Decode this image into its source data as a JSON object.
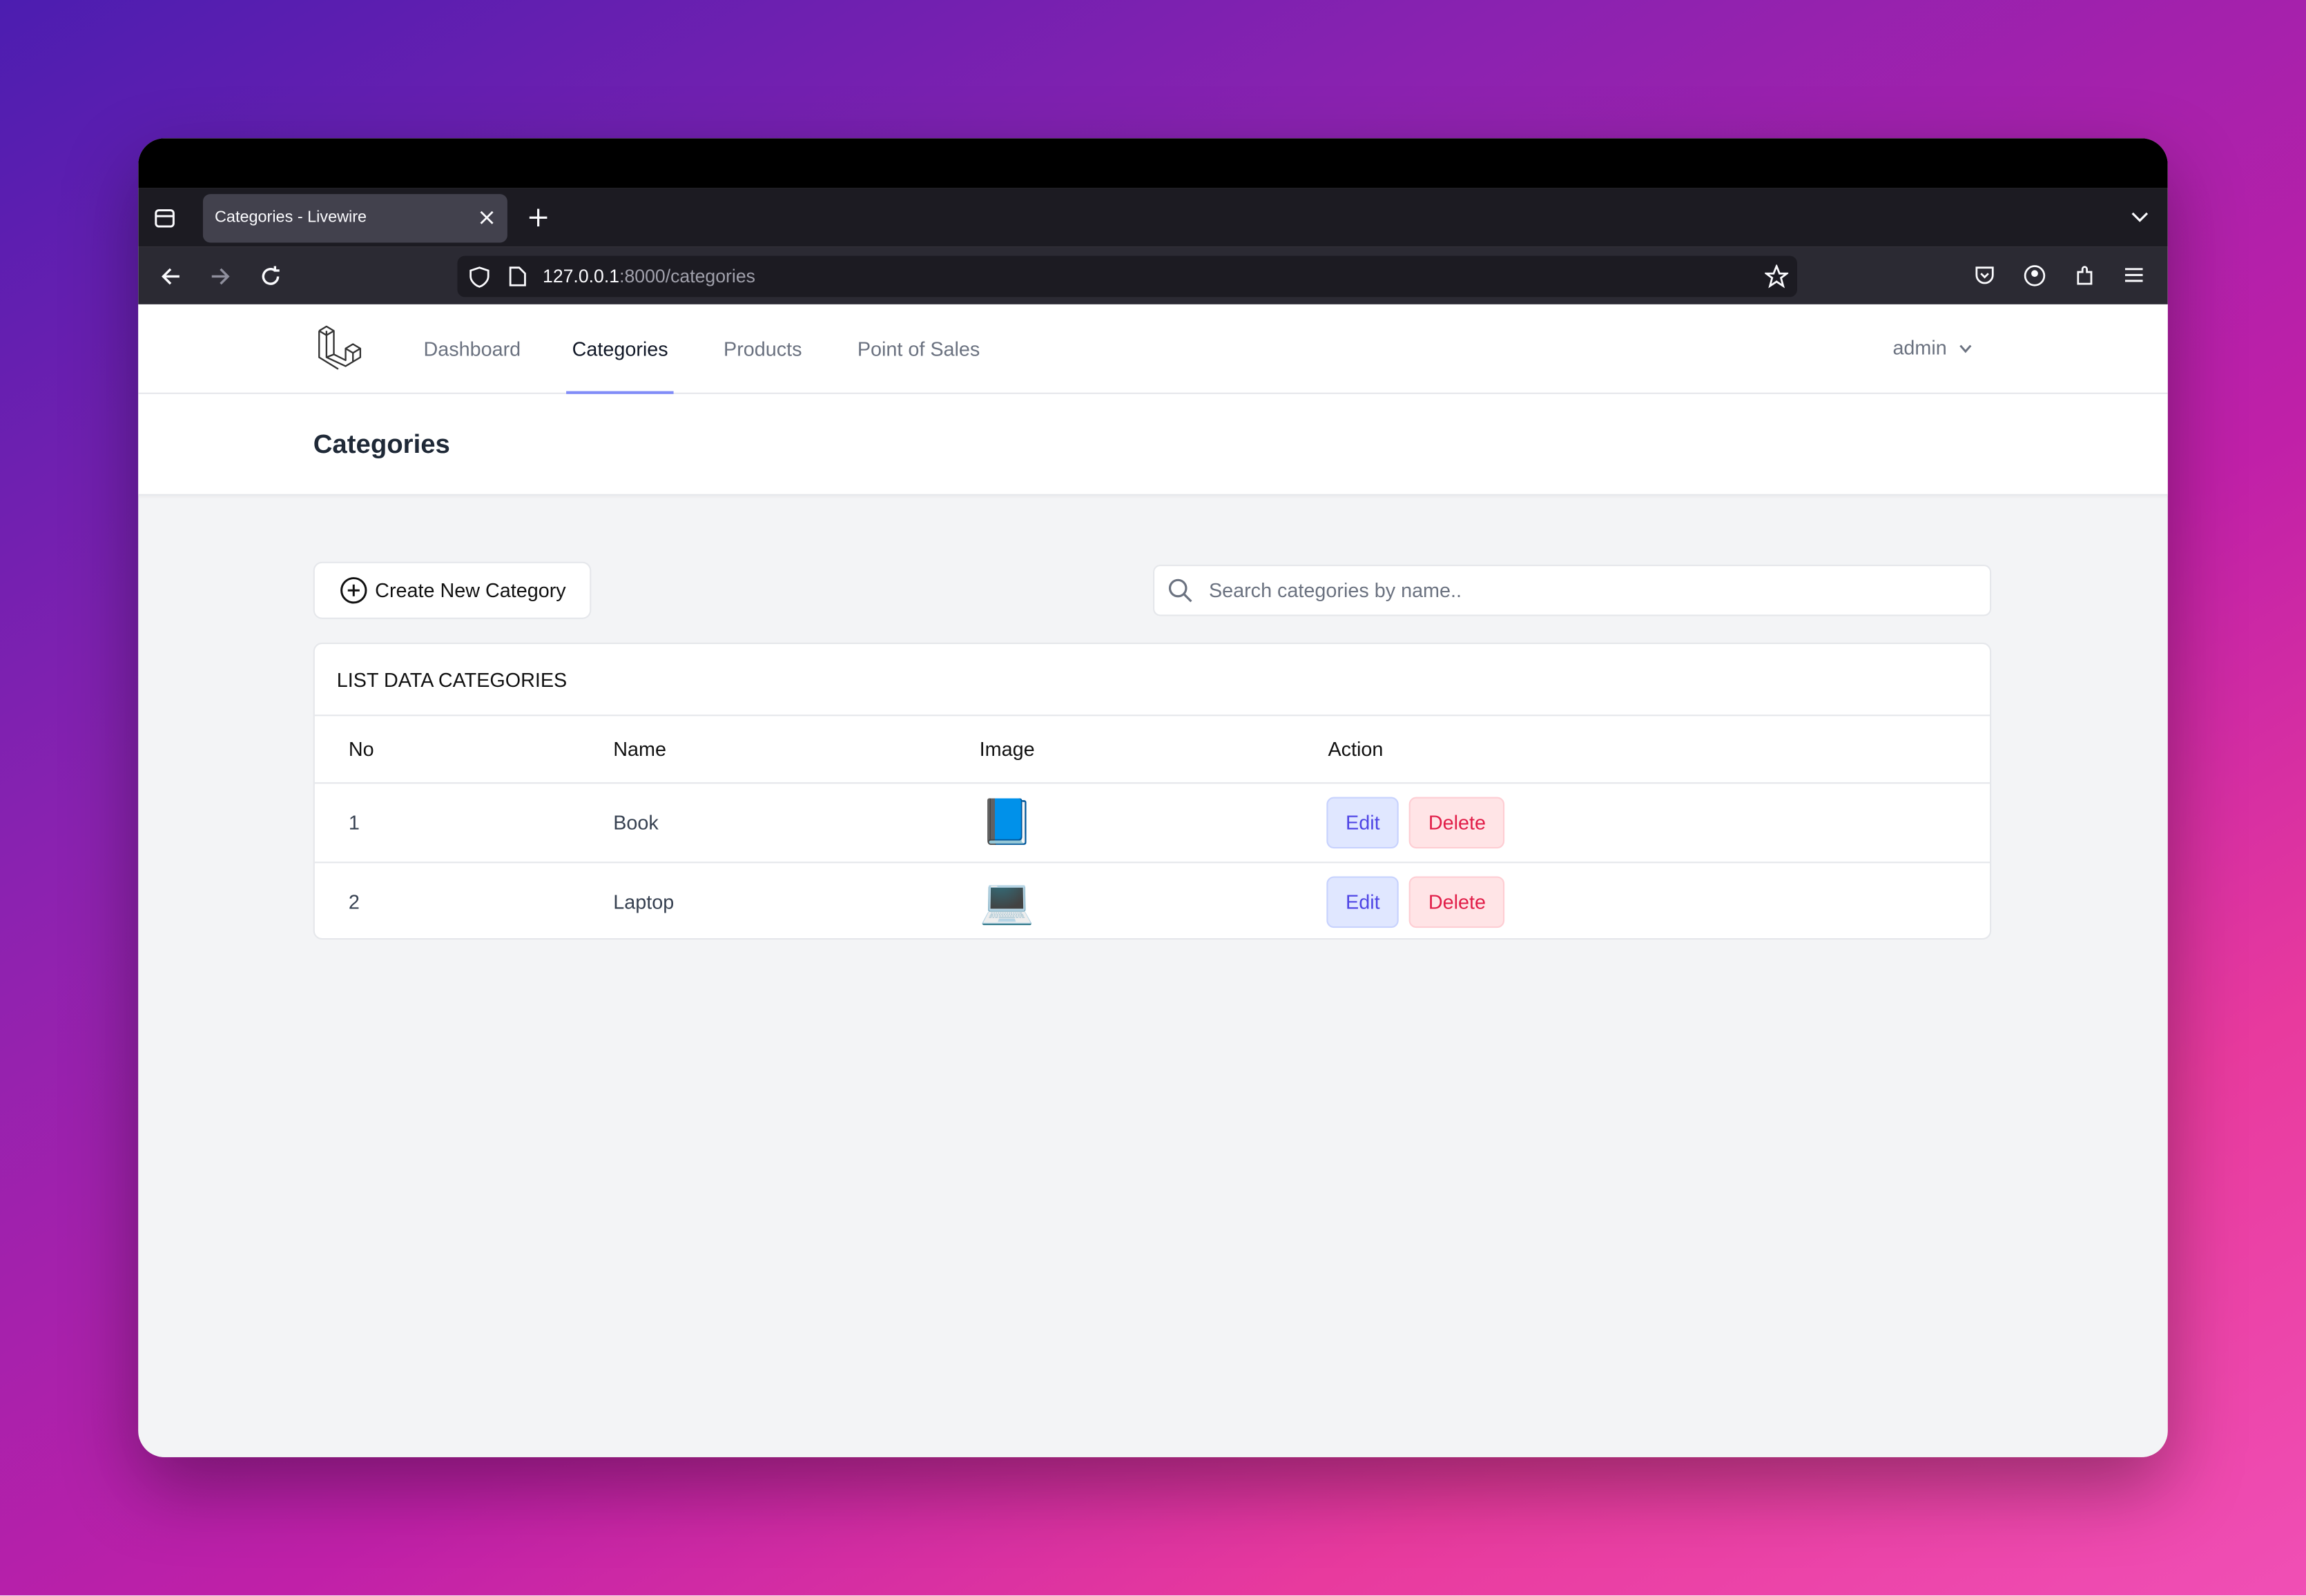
{
  "browser": {
    "tab_title": "Categories - Livewire",
    "url_host": "127.0.0.1",
    "url_path": ":8000/categories"
  },
  "nav": {
    "items": [
      "Dashboard",
      "Categories",
      "Products",
      "Point of Sales"
    ],
    "active": 1,
    "user": "admin"
  },
  "header": {
    "title": "Categories"
  },
  "toolbar": {
    "create_button": "Create New Category",
    "search_placeholder": "Search categories by name.."
  },
  "table": {
    "title": "LIST DATA CATEGORIES",
    "columns": [
      "No",
      "Name",
      "Image",
      "Action"
    ],
    "rows": [
      {
        "no": 1,
        "name": "Book",
        "image": "📘",
        "actions": [
          "Edit",
          "Delete"
        ]
      },
      {
        "no": 2,
        "name": "Laptop",
        "image": "💻",
        "actions": [
          "Edit",
          "Delete"
        ]
      }
    ]
  }
}
